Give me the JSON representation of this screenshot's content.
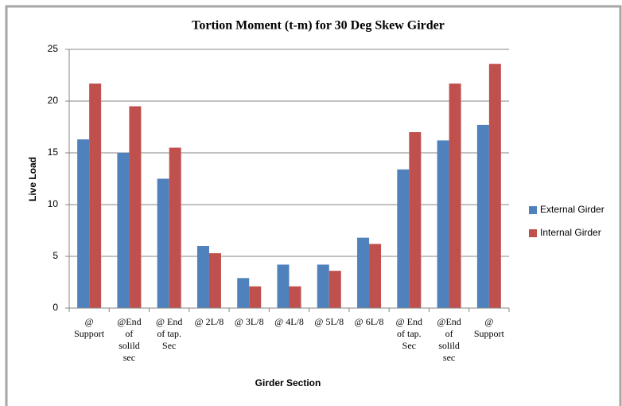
{
  "chart_data": {
    "type": "bar",
    "title": "Tortion Moment (t-m) for 30 Deg Skew Girder",
    "x_label": "Girder Section",
    "y_label": "Live Load",
    "categories": [
      "@\nSupport",
      "@End\nof\nsolild\nsec",
      "@ End\nof tap.\nSec",
      "@ 2L/8",
      "@ 3L/8",
      "@ 4L/8",
      "@ 5L/8",
      "@ 6L/8",
      "@ End\nof tap.\nSec",
      "@End\nof\nsolild\nsec",
      "@\nSupport"
    ],
    "series": [
      {
        "name": "External Girder",
        "color": "#4f81bd",
        "values": [
          16.3,
          15.0,
          12.5,
          6.0,
          2.9,
          4.2,
          4.2,
          6.8,
          13.4,
          16.2,
          17.7
        ]
      },
      {
        "name": "Internal Girder",
        "color": "#c0504d",
        "values": [
          21.7,
          19.5,
          15.5,
          5.3,
          2.1,
          2.1,
          3.6,
          6.2,
          17.0,
          21.7,
          23.6
        ]
      }
    ],
    "ylim": [
      0,
      25
    ],
    "yticks": [
      0,
      5,
      10,
      15,
      20,
      25
    ],
    "grid": true,
    "legend": "right"
  }
}
